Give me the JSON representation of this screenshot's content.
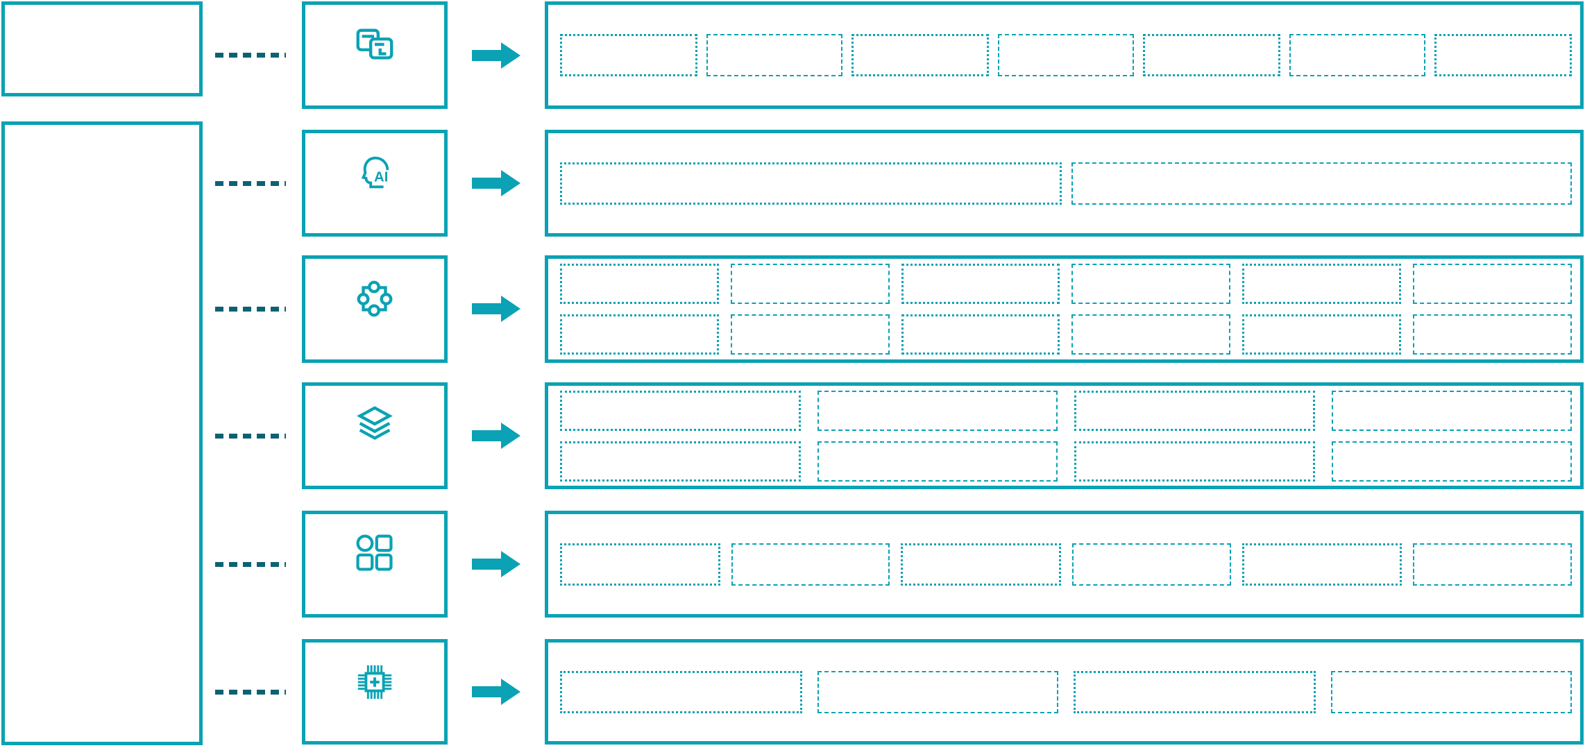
{
  "colors": {
    "primary_teal": "#0AA2B4",
    "connector_dark_teal": "#0C6274",
    "background": "#FFFFFF"
  },
  "left_panel": {
    "top_box": "empty-outlined-box",
    "main_box": "empty-outlined-box-tall"
  },
  "rows": [
    {
      "icon": "overlapping-windows-icon",
      "connector": "dashed-line",
      "arrow": "right-arrow",
      "placeholders": {
        "rows": 1,
        "cols": 7
      }
    },
    {
      "icon": "ai-head-icon",
      "icon_text": "AI",
      "connector": "dashed-line",
      "arrow": "right-arrow",
      "placeholders": {
        "rows": 1,
        "cols": 2
      }
    },
    {
      "icon": "puzzle-piece-icon",
      "connector": "dashed-line",
      "arrow": "right-arrow",
      "placeholders": {
        "rows": 2,
        "cols": 6
      }
    },
    {
      "icon": "layers-icon",
      "connector": "dashed-line",
      "arrow": "right-arrow",
      "placeholders": {
        "rows": 2,
        "cols": 4
      }
    },
    {
      "icon": "shapes-grid-icon",
      "connector": "dashed-line",
      "arrow": "right-arrow",
      "placeholders": {
        "rows": 1,
        "cols": 6
      }
    },
    {
      "icon": "cpu-plus-icon",
      "connector": "dashed-line",
      "arrow": "right-arrow",
      "placeholders": {
        "rows": 1,
        "cols": 4
      }
    }
  ]
}
